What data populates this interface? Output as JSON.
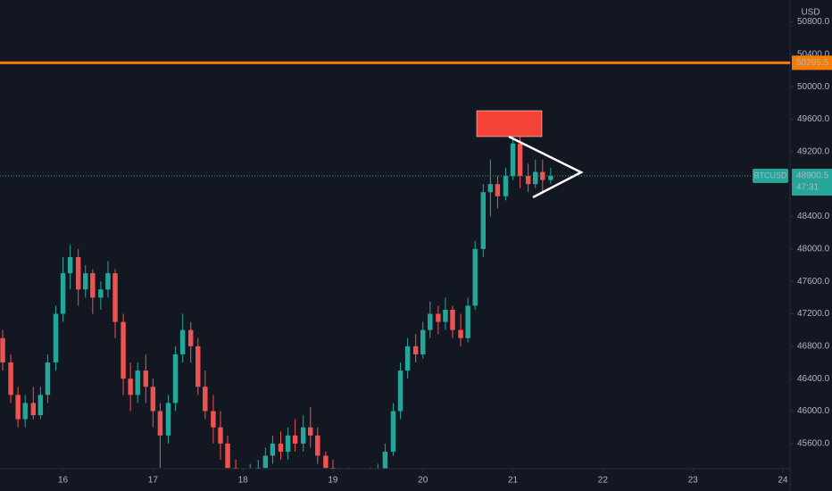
{
  "chart_data": {
    "type": "candlestick",
    "symbol": "BTCUSD",
    "currency": "USD",
    "up_color": "#26a69a",
    "down_color": "#ef5350",
    "grid": false,
    "x": [
      15.33,
      15.42,
      15.5,
      15.58,
      15.67,
      15.75,
      15.83,
      15.92,
      16,
      16.08,
      16.17,
      16.25,
      16.33,
      16.42,
      16.5,
      16.58,
      16.67,
      16.75,
      16.83,
      16.92,
      17,
      17.08,
      17.17,
      17.25,
      17.33,
      17.42,
      17.5,
      17.58,
      17.67,
      17.75,
      17.83,
      17.92,
      18,
      18.08,
      18.17,
      18.25,
      18.33,
      18.42,
      18.5,
      18.58,
      18.67,
      18.75,
      18.83,
      18.92,
      19,
      19.08,
      19.17,
      19.25,
      19.33,
      19.42,
      19.5,
      19.58,
      19.67,
      19.75,
      19.83,
      19.92,
      20,
      20.08,
      20.17,
      20.25,
      20.33,
      20.42,
      20.5,
      20.58,
      20.67,
      20.75,
      20.83,
      20.92,
      21,
      21.08,
      21.17,
      21.25,
      21.33,
      21.42
    ],
    "open": [
      46900,
      46600,
      46200,
      45900,
      46100,
      45950,
      46200,
      46600,
      47200,
      47700,
      47900,
      47500,
      47700,
      47400,
      47500,
      47700,
      47100,
      46400,
      46200,
      46500,
      46300,
      46000,
      45700,
      46100,
      46700,
      47000,
      46800,
      46300,
      46000,
      45800,
      45600,
      45300,
      45200,
      45150,
      45250,
      45300,
      45450,
      45600,
      45500,
      45700,
      45600,
      45800,
      45700,
      45450,
      45300,
      45200,
      45150,
      45200,
      45100,
      45150,
      45200,
      45250,
      45500,
      46000,
      46500,
      46800,
      46700,
      47000,
      47200,
      47100,
      47250,
      47000,
      46900,
      47300,
      48000,
      48700,
      48800,
      48650,
      48900,
      49300,
      48900,
      48800,
      48950,
      48850
    ],
    "high": [
      47000,
      46700,
      46300,
      46200,
      46300,
      46300,
      46700,
      47300,
      47900,
      48050,
      48000,
      47800,
      47750,
      47600,
      47850,
      47750,
      47200,
      46600,
      46600,
      46700,
      46400,
      46100,
      46200,
      46800,
      47200,
      47100,
      46900,
      46500,
      46200,
      46000,
      45700,
      45400,
      45300,
      45350,
      45400,
      45550,
      45700,
      45750,
      45800,
      45900,
      45950,
      46050,
      45800,
      45500,
      45400,
      45300,
      45300,
      45250,
      45250,
      45300,
      45350,
      45600,
      46100,
      46600,
      46900,
      46950,
      47100,
      47350,
      47300,
      47400,
      47300,
      47200,
      47400,
      48100,
      48800,
      49100,
      48900,
      49000,
      49400,
      49400,
      49050,
      49100,
      49100,
      49000
    ],
    "low": [
      46500,
      46100,
      45800,
      45800,
      45900,
      45900,
      46100,
      46500,
      47100,
      47500,
      47300,
      47400,
      47200,
      47250,
      47400,
      46900,
      46200,
      46000,
      46100,
      46100,
      45800,
      45300,
      45600,
      46000,
      46600,
      46600,
      46200,
      45900,
      45600,
      45400,
      45200,
      45100,
      45000,
      45050,
      45150,
      45200,
      45350,
      45400,
      45400,
      45500,
      45500,
      45550,
      45350,
      45200,
      45100,
      45050,
      45100,
      45000,
      45000,
      45100,
      45150,
      45200,
      45450,
      45900,
      46400,
      46600,
      46650,
      46900,
      46950,
      47000,
      46900,
      46800,
      46850,
      47250,
      47900,
      48400,
      48500,
      48600,
      48850,
      48750,
      48700,
      48750,
      48700,
      48800
    ],
    "close": [
      46600,
      46200,
      45900,
      46100,
      45950,
      46200,
      46600,
      47200,
      47700,
      47900,
      47500,
      47700,
      47400,
      47500,
      47700,
      47100,
      46400,
      46200,
      46500,
      46300,
      46000,
      45700,
      46100,
      46700,
      47000,
      46800,
      46300,
      46000,
      45800,
      45600,
      45300,
      45200,
      45150,
      45250,
      45300,
      45450,
      45600,
      45500,
      45700,
      45600,
      45800,
      45700,
      45450,
      45300,
      45200,
      45150,
      45200,
      45100,
      45150,
      45200,
      45250,
      45500,
      46000,
      46500,
      46800,
      46700,
      47000,
      47200,
      47100,
      47250,
      47000,
      46900,
      47300,
      48000,
      48700,
      48800,
      48650,
      48900,
      49300,
      48900,
      48800,
      48950,
      48850,
      48900.5
    ],
    "xlim": [
      15.3,
      24.08
    ],
    "xticks": [
      16,
      17,
      18,
      19,
      20,
      21,
      22,
      23,
      24
    ],
    "ylim": [
      45290,
      51070
    ],
    "yticks": [
      {
        "value": 45600,
        "label": "45600.0"
      },
      {
        "value": 46000,
        "label": "46000.0"
      },
      {
        "value": 46400,
        "label": "46400.0"
      },
      {
        "value": 46800,
        "label": "46800.0"
      },
      {
        "value": 47200,
        "label": "47200.0"
      },
      {
        "value": 47600,
        "label": "47600.0"
      },
      {
        "value": 48000,
        "label": "48000.0"
      },
      {
        "value": 48400,
        "label": "48400.0"
      },
      {
        "value": 48800,
        "label": "48800.0"
      },
      {
        "value": 49200,
        "label": "49200.0"
      },
      {
        "value": 49600,
        "label": "49600.0"
      },
      {
        "value": 50000,
        "label": "50000.0"
      },
      {
        "value": 50400,
        "label": "50400.0"
      },
      {
        "value": 50800,
        "label": "50800.0"
      }
    ],
    "horizontal_line": {
      "value": 50295.5,
      "color": "#f57c00"
    },
    "last_price": 48900.5,
    "countdown": "47:31"
  }
}
